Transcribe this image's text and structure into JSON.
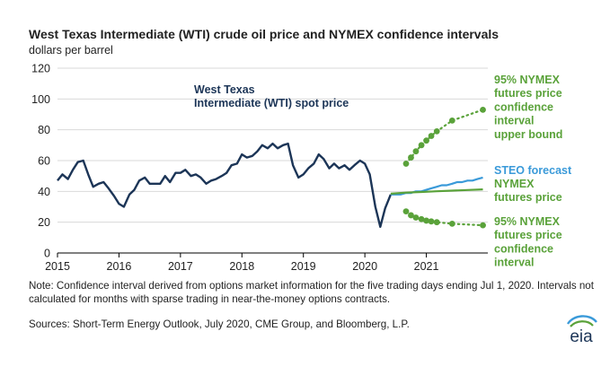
{
  "title": "West Texas Intermediate (WTI) crude oil price and NYMEX confidence intervals",
  "subtitle": "dollars per barrel",
  "note": "Note: Confidence interval derived from options market information for the five trading days ending Jul 1, 2020. Intervals not calculated for months with sparse trading in near-the-money options contracts.",
  "sources": "Sources: Short-Term Energy Outlook, July 2020, CME Group, and Bloomberg, L.P.",
  "logo_text": "eia",
  "colors": {
    "spot": "#1c3557",
    "steo": "#3a9ad9",
    "nymex": "#5aa23a",
    "axis": "#000000",
    "grid": "#d9d9d9"
  },
  "chart_data": {
    "type": "line",
    "title": "West Texas Intermediate (WTI) crude oil price and NYMEX confidence intervals",
    "ylabel": "dollars per barrel",
    "xlabel": "",
    "ylim": [
      0,
      120
    ],
    "xlim": [
      2015.0,
      2022.0
    ],
    "yticks": [
      "0",
      "20",
      "40",
      "60",
      "80",
      "100",
      "120"
    ],
    "xticks": [
      "2015",
      "2016",
      "2017",
      "2018",
      "2019",
      "2020",
      "2021"
    ],
    "grid": "horizontal",
    "series": [
      {
        "name": "West Texas Intermediate (WTI) spot price",
        "label": [
          "West Texas",
          "Intermediate (WTI) spot price"
        ],
        "style": "solid",
        "x": [
          2015.0,
          2015.08,
          2015.17,
          2015.25,
          2015.33,
          2015.42,
          2015.5,
          2015.58,
          2015.67,
          2015.75,
          2015.83,
          2015.92,
          2016.0,
          2016.08,
          2016.17,
          2016.25,
          2016.33,
          2016.42,
          2016.5,
          2016.58,
          2016.67,
          2016.75,
          2016.83,
          2016.92,
          2017.0,
          2017.08,
          2017.17,
          2017.25,
          2017.33,
          2017.42,
          2017.5,
          2017.58,
          2017.67,
          2017.75,
          2017.83,
          2017.92,
          2018.0,
          2018.08,
          2018.17,
          2018.25,
          2018.33,
          2018.42,
          2018.5,
          2018.58,
          2018.67,
          2018.75,
          2018.83,
          2018.92,
          2019.0,
          2019.08,
          2019.17,
          2019.25,
          2019.33,
          2019.42,
          2019.5,
          2019.58,
          2019.67,
          2019.75,
          2019.83,
          2019.92,
          2020.0,
          2020.08,
          2020.17,
          2020.25,
          2020.33,
          2020.42
        ],
        "values": [
          47,
          51,
          48,
          54,
          59,
          60,
          51,
          43,
          45,
          46,
          42,
          37,
          32,
          30,
          38,
          41,
          47,
          49,
          45,
          45,
          45,
          50,
          46,
          52,
          52,
          54,
          50,
          51,
          49,
          45,
          47,
          48,
          50,
          52,
          57,
          58,
          64,
          62,
          63,
          66,
          70,
          68,
          71,
          68,
          70,
          71,
          57,
          49,
          51,
          55,
          58,
          64,
          61,
          55,
          58,
          55,
          57,
          54,
          57,
          60,
          58,
          51,
          30,
          17,
          29,
          38
        ]
      },
      {
        "name": "STEO forecast",
        "label": [
          "STEO forecast"
        ],
        "style": "solid",
        "x": [
          2020.42,
          2020.5,
          2020.58,
          2020.67,
          2020.75,
          2020.83,
          2020.92,
          2021.0,
          2021.08,
          2021.17,
          2021.25,
          2021.33,
          2021.42,
          2021.5,
          2021.58,
          2021.67,
          2021.75,
          2021.83,
          2021.92
        ],
        "values": [
          38,
          38,
          38,
          39,
          39,
          40,
          40,
          41,
          42,
          43,
          44,
          44,
          45,
          46,
          46,
          47,
          47,
          48,
          49
        ]
      },
      {
        "name": "NYMEX futures price",
        "label": [
          "NYMEX",
          "futures price"
        ],
        "style": "solid",
        "x": [
          2020.42,
          2020.67,
          2020.92,
          2021.17,
          2021.42,
          2021.67,
          2021.92
        ],
        "values": [
          38.5,
          39.2,
          39.6,
          40.1,
          40.5,
          40.9,
          41.3
        ]
      },
      {
        "name": "95% NYMEX futures price confidence interval upper bound",
        "label": [
          "95% NYMEX",
          "futures price",
          "confidence",
          "interval",
          "upper bound"
        ],
        "style": "dotted-markers",
        "x": [
          2020.67,
          2020.75,
          2020.83,
          2020.92,
          2021.0,
          2021.08,
          2021.17,
          2021.42,
          2021.92
        ],
        "values": [
          58,
          62,
          66,
          70,
          73,
          76,
          79,
          86,
          93
        ]
      },
      {
        "name": "95% NYMEX futures price confidence interval",
        "label": [
          "95% NYMEX",
          "futures price",
          "confidence",
          "interval"
        ],
        "style": "dotted-markers",
        "x": [
          2020.67,
          2020.75,
          2020.83,
          2020.92,
          2021.0,
          2021.08,
          2021.17,
          2021.42,
          2021.92
        ],
        "values": [
          27,
          24.5,
          23,
          22,
          21,
          20.5,
          20,
          19,
          18
        ]
      }
    ]
  }
}
